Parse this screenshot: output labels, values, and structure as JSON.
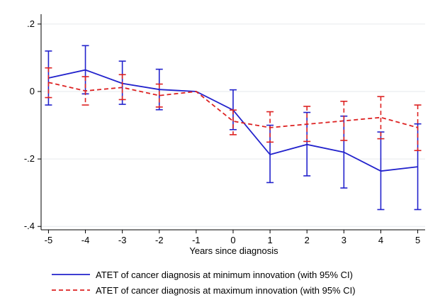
{
  "chart_data": {
    "type": "line",
    "title": "",
    "xlabel": "Years since diagnosis",
    "ylabel": "",
    "x": [
      -5,
      -4,
      -3,
      -2,
      -1,
      0,
      1,
      2,
      3,
      4,
      5
    ],
    "x_tick_labels": [
      "-5",
      "-4",
      "-3",
      "-2",
      "-1",
      "0",
      "1",
      "2",
      "3",
      "4",
      "5"
    ],
    "y_ticks": [
      0.2,
      0,
      -0.2,
      -0.4
    ],
    "y_tick_labels": [
      ".2",
      "0",
      "-.2",
      "-.4"
    ],
    "xlim": [
      -5.2,
      5.2
    ],
    "ylim": [
      -0.41,
      0.225
    ],
    "grid": "horizontal",
    "legend_position": "bottom",
    "series": [
      {
        "name": "ATET of cancer diagnosis at minimum innovation (with 95% CI)",
        "color": "#2222cc",
        "dash": "solid",
        "values": [
          0.04,
          0.064,
          0.024,
          0.006,
          0.0,
          -0.055,
          -0.187,
          -0.157,
          -0.18,
          -0.236,
          -0.223
        ],
        "ci_low": [
          -0.04,
          -0.007,
          -0.038,
          -0.054,
          0.0,
          -0.113,
          -0.27,
          -0.25,
          -0.286,
          -0.35,
          -0.35
        ],
        "ci_high": [
          0.12,
          0.136,
          0.09,
          0.066,
          0.0,
          0.005,
          -0.1,
          -0.062,
          -0.073,
          -0.12,
          -0.096
        ]
      },
      {
        "name": "ATET of cancer diagnosis at maximum innovation (with 95% CI)",
        "color": "#dd2222",
        "dash": "dashed",
        "values": [
          0.027,
          0.002,
          0.012,
          -0.012,
          0.0,
          -0.088,
          -0.107,
          -0.097,
          -0.087,
          -0.077,
          -0.107
        ],
        "ci_low": [
          -0.018,
          -0.04,
          -0.024,
          -0.046,
          0.0,
          -0.128,
          -0.15,
          -0.148,
          -0.145,
          -0.14,
          -0.175
        ],
        "ci_high": [
          0.07,
          0.044,
          0.05,
          0.022,
          0.0,
          -0.055,
          -0.06,
          -0.044,
          -0.029,
          -0.015,
          -0.04
        ]
      }
    ]
  }
}
